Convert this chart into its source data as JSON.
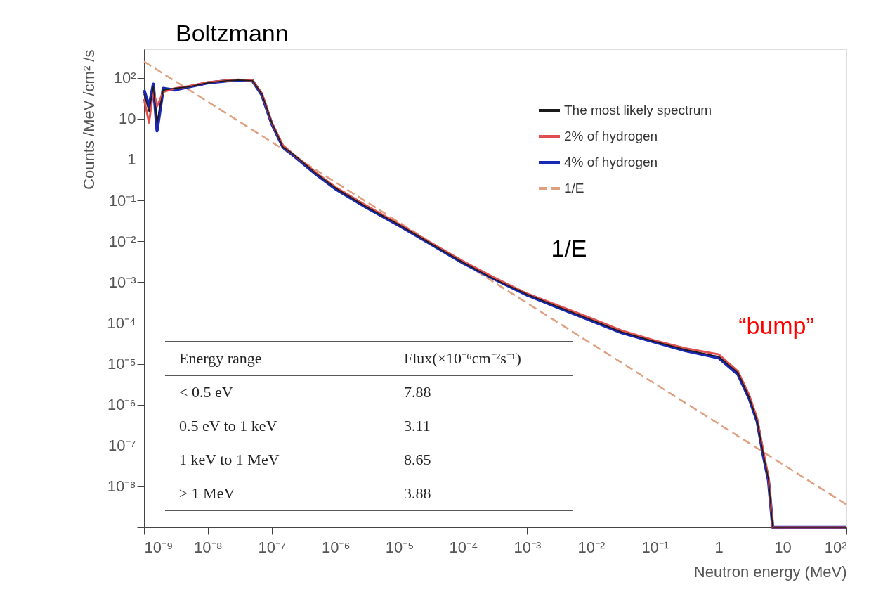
{
  "chart_data": {
    "type": "line",
    "xlabel": "Neutron energy (MeV)",
    "ylabel": "Counts /MeV /cm² /s",
    "log": "xy",
    "xlim": [
      1e-09,
      100
    ],
    "ylim": [
      1e-09,
      500
    ],
    "xticks": [
      {
        "value": 1e-09,
        "label": "10⁻⁹"
      },
      {
        "value": 1e-08,
        "label": "10⁻⁸"
      },
      {
        "value": 1e-07,
        "label": "10⁻⁷"
      },
      {
        "value": 1e-06,
        "label": "10⁻⁶"
      },
      {
        "value": 1e-05,
        "label": "10⁻⁵"
      },
      {
        "value": 0.0001,
        "label": "10⁻⁴"
      },
      {
        "value": 0.001,
        "label": "10⁻³"
      },
      {
        "value": 0.01,
        "label": "10⁻²"
      },
      {
        "value": 0.1,
        "label": "10⁻¹"
      },
      1,
      10,
      {
        "value": 100,
        "label": "10²"
      }
    ],
    "yticks": [
      {
        "value": 1e-09,
        "label": null
      },
      {
        "value": 1e-08,
        "label": "10⁻⁸"
      },
      {
        "value": 1e-07,
        "label": "10⁻⁷"
      },
      {
        "value": 1e-06,
        "label": "10⁻⁶"
      },
      {
        "value": 1e-05,
        "label": "10⁻⁵"
      },
      {
        "value": 0.0001,
        "label": "10⁻⁴"
      },
      {
        "value": 0.001,
        "label": "10⁻³"
      },
      {
        "value": 0.01,
        "label": "10⁻²"
      },
      {
        "value": 0.1,
        "label": "10⁻¹"
      },
      1,
      10,
      {
        "value": 100,
        "label": "10²"
      }
    ],
    "grid": false,
    "legend": "top right",
    "marker": "none",
    "series": [
      {
        "name": "The most likely spectrum",
        "color": "#1a1a1a",
        "line_style": "solid",
        "x": [
          1e-09,
          1.2e-09,
          1.4e-09,
          1.6e-09,
          2e-09,
          3e-09,
          5e-09,
          1e-08,
          2e-08,
          3e-08,
          5e-08,
          7e-08,
          1e-07,
          1.5e-07,
          2e-07,
          5e-07,
          1e-06,
          3e-06,
          1e-05,
          3e-05,
          0.0001,
          0.0003,
          0.001,
          0.003,
          0.01,
          0.03,
          0.1,
          0.3,
          1,
          2,
          3,
          4,
          5,
          6,
          7,
          100
        ],
        "values": [
          40,
          15,
          60,
          8,
          50,
          55,
          60,
          75,
          85,
          88,
          85,
          40,
          8,
          2,
          1.5,
          0.45,
          0.2,
          0.07,
          0.025,
          0.009,
          0.003,
          0.0012,
          0.0005,
          0.00025,
          0.00012,
          6e-05,
          3.5e-05,
          2.2e-05,
          1.5e-05,
          6e-06,
          1.5e-06,
          4e-07,
          6e-08,
          1.5e-08,
          1e-09,
          1e-09
        ]
      },
      {
        "name": "2% of hydrogen",
        "color": "#e05050",
        "line_style": "solid",
        "x": [
          1e-09,
          1.2e-09,
          1.4e-09,
          1.6e-09,
          2e-09,
          3e-09,
          5e-09,
          1e-08,
          2e-08,
          3e-08,
          5e-08,
          7e-08,
          1e-07,
          1.5e-07,
          2e-07,
          5e-07,
          1e-06,
          3e-06,
          1e-05,
          3e-05,
          0.0001,
          0.0003,
          0.001,
          0.003,
          0.01,
          0.03,
          0.1,
          0.3,
          1,
          2,
          3,
          4,
          5,
          6,
          7,
          100
        ],
        "values": [
          30,
          8,
          50,
          20,
          45,
          55,
          62,
          78,
          86,
          90,
          86,
          42,
          8,
          2.2,
          1.5,
          0.47,
          0.21,
          0.075,
          0.026,
          0.0095,
          0.0032,
          0.0013,
          0.00052,
          0.00027,
          0.00013,
          6.5e-05,
          3.7e-05,
          2.4e-05,
          1.7e-05,
          6.5e-06,
          1.7e-06,
          4.5e-07,
          7e-08,
          1.7e-08,
          1e-09,
          1e-09
        ]
      },
      {
        "name": "4% of hydrogen",
        "color": "#1a28b4",
        "line_style": "solid",
        "x": [
          1e-09,
          1.2e-09,
          1.4e-09,
          1.6e-09,
          2e-09,
          3e-09,
          5e-09,
          1e-08,
          2e-08,
          3e-08,
          5e-08,
          7e-08,
          1e-07,
          1.5e-07,
          2e-07,
          5e-07,
          1e-06,
          3e-06,
          1e-05,
          3e-05,
          0.0001,
          0.0003,
          0.001,
          0.003,
          0.01,
          0.03,
          0.1,
          0.3,
          1,
          2,
          3,
          4,
          5,
          6,
          7,
          100
        ],
        "values": [
          50,
          20,
          70,
          5,
          55,
          50,
          60,
          75,
          84,
          87,
          84,
          38,
          7.5,
          2,
          1.4,
          0.43,
          0.19,
          0.068,
          0.024,
          0.0088,
          0.0029,
          0.0012,
          0.00048,
          0.00024,
          0.000115,
          5.8e-05,
          3.4e-05,
          2.1e-05,
          1.4e-05,
          5.5e-06,
          1.4e-06,
          3.8e-07,
          5.5e-08,
          1.4e-08,
          1e-09,
          1e-09
        ]
      },
      {
        "name": "1/E",
        "color": "#e0a080",
        "line_style": "dashed",
        "x": [
          1e-09,
          100
        ],
        "values": [
          250,
          3.6e-09
        ]
      }
    ],
    "annotations": [
      "Boltzmann",
      "1/E",
      "“bump”",
      "Energy range",
      "Flux(×10⁻⁶cm⁻²s⁻¹)",
      "< 0.5 eV",
      "7.88",
      "0.5 eV to 1 keV",
      "3.11",
      "1 keV to 1 MeV",
      "8.65",
      "≥ 1 MeV",
      "3.88"
    ]
  }
}
